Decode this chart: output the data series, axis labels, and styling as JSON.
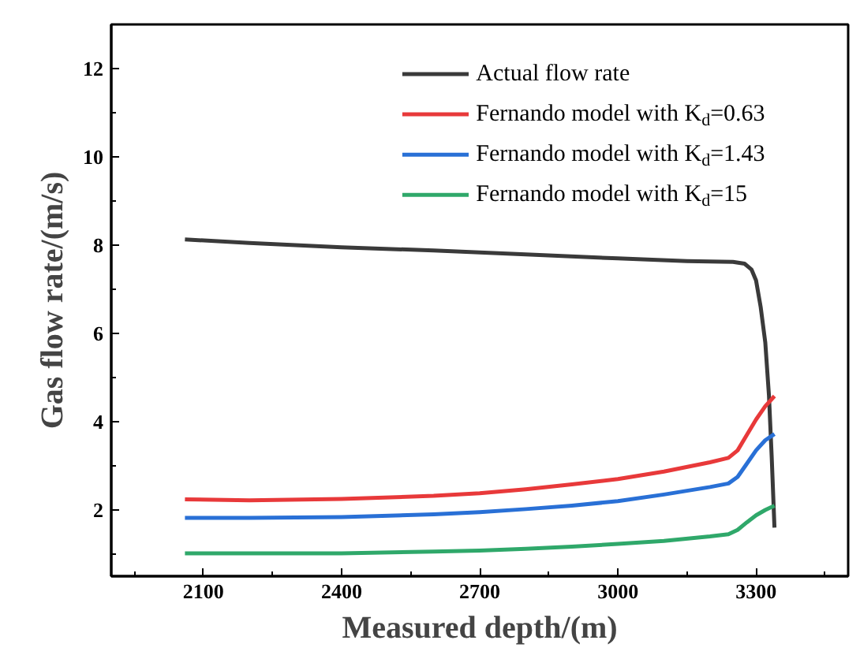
{
  "chart_data": {
    "type": "line",
    "xlabel": "Measured depth/(m)",
    "ylabel": "Gas flow rate/(m/s)",
    "xlim": [
      1900,
      3500
    ],
    "ylim": [
      0.5,
      13
    ],
    "xticks": [
      2100,
      2400,
      2700,
      3000,
      3300
    ],
    "yticks": [
      2,
      4,
      6,
      8,
      10,
      12
    ],
    "grid": false,
    "legend": "top right",
    "line_style": "solid",
    "series": [
      {
        "name": "Actual flow rate",
        "color": "#3a3a3a",
        "x": [
          2060,
          2200,
          2400,
          2600,
          2800,
          3000,
          3150,
          3250,
          3275,
          3290,
          3300,
          3310,
          3320,
          3328,
          3334,
          3340
        ],
        "values": [
          8.13,
          8.05,
          7.95,
          7.88,
          7.79,
          7.7,
          7.64,
          7.62,
          7.58,
          7.45,
          7.2,
          6.6,
          5.8,
          4.6,
          3.2,
          1.6
        ]
      },
      {
        "name": "Fernando model with K$_{d}$=0.63",
        "color": "#e8393a",
        "x": [
          2060,
          2200,
          2400,
          2600,
          2700,
          2800,
          2900,
          3000,
          3100,
          3200,
          3240,
          3260,
          3280,
          3300,
          3320,
          3340
        ],
        "values": [
          2.24,
          2.22,
          2.25,
          2.32,
          2.38,
          2.47,
          2.58,
          2.7,
          2.87,
          3.08,
          3.18,
          3.35,
          3.7,
          4.05,
          4.35,
          4.58
        ]
      },
      {
        "name": "Fernando model with K$_{d}$=1.43",
        "color": "#2970d6",
        "x": [
          2060,
          2200,
          2400,
          2600,
          2700,
          2800,
          2900,
          3000,
          3100,
          3200,
          3240,
          3260,
          3280,
          3300,
          3320,
          3340
        ],
        "values": [
          1.82,
          1.82,
          1.84,
          1.9,
          1.95,
          2.02,
          2.1,
          2.2,
          2.35,
          2.52,
          2.6,
          2.75,
          3.05,
          3.35,
          3.58,
          3.72
        ]
      },
      {
        "name": "Fernando model with K$_{d}$=15",
        "color": "#2fa86a",
        "x": [
          2060,
          2200,
          2400,
          2600,
          2700,
          2800,
          2900,
          3000,
          3100,
          3200,
          3240,
          3260,
          3280,
          3300,
          3320,
          3340
        ],
        "values": [
          1.02,
          1.02,
          1.02,
          1.06,
          1.08,
          1.12,
          1.17,
          1.23,
          1.3,
          1.4,
          1.45,
          1.55,
          1.72,
          1.88,
          2.0,
          2.1
        ]
      }
    ]
  }
}
